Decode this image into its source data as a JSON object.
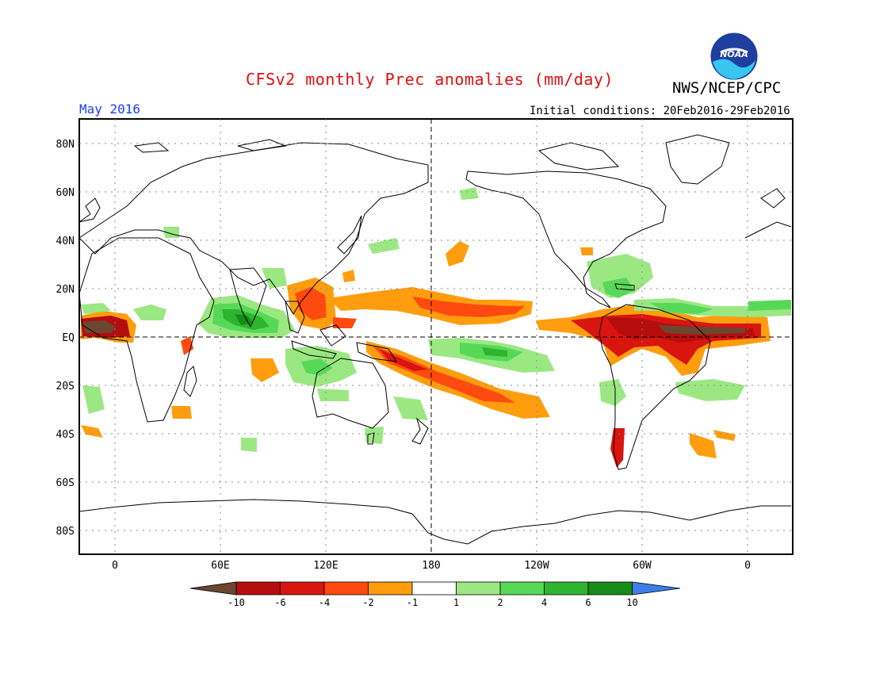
{
  "header": {
    "title": "CFSv2 monthly Prec anomalies (mm/day)",
    "agency": "NWS/NCEP/CPC",
    "month": "May 2016",
    "initial_conditions": "Initial conditions: 20Feb2016-29Feb2016",
    "logo_text": "NOAA"
  },
  "map": {
    "lat_labels": [
      "80N",
      "60N",
      "40N",
      "20N",
      "EQ",
      "20S",
      "40S",
      "60S",
      "80S"
    ],
    "lon_labels": [
      "0",
      "60E",
      "120E",
      "180",
      "120W",
      "60W",
      "0"
    ]
  },
  "legend": {
    "labels": [
      "-10",
      "-6",
      "-4",
      "-2",
      "-1",
      "1",
      "2",
      "4",
      "6",
      "10"
    ],
    "colors": [
      "#6b4631",
      "#b50d0d",
      "#d9150f",
      "#ff4a0f",
      "#ff9d0f",
      "#ffffff",
      "#9be883",
      "#57d957",
      "#2fb42f",
      "#178c17",
      "#3c7ee6"
    ]
  }
}
